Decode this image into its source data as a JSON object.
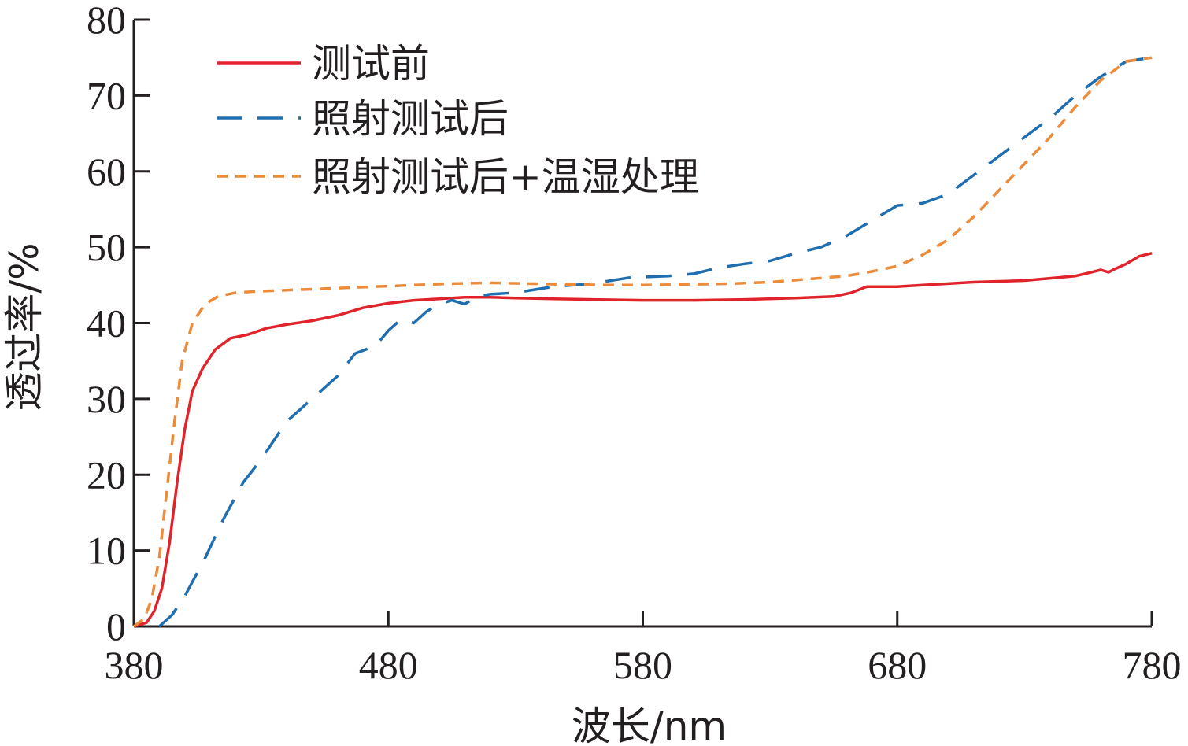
{
  "chart_data": {
    "type": "line",
    "title": "",
    "xlabel": "波长/nm",
    "ylabel": "透过率/%",
    "xlim": [
      380,
      780
    ],
    "ylim": [
      0,
      80
    ],
    "xticks": [
      "380",
      "480",
      "580",
      "680",
      "780"
    ],
    "yticks": [
      "0",
      "10",
      "20",
      "30",
      "40",
      "50",
      "60",
      "70",
      "80"
    ],
    "grid": false,
    "legend": "top-left",
    "series": [
      {
        "name": "测试前",
        "color": "#e0242b",
        "dash": "solid",
        "points": [
          [
            380,
            0
          ],
          [
            385,
            0.5
          ],
          [
            388,
            2
          ],
          [
            391,
            5
          ],
          [
            394,
            11
          ],
          [
            397,
            19
          ],
          [
            400,
            26
          ],
          [
            403,
            31
          ],
          [
            407,
            34
          ],
          [
            412,
            36.5
          ],
          [
            418,
            38
          ],
          [
            425,
            38.5
          ],
          [
            432,
            39.3
          ],
          [
            440,
            39.8
          ],
          [
            450,
            40.3
          ],
          [
            460,
            41
          ],
          [
            470,
            42
          ],
          [
            480,
            42.6
          ],
          [
            490,
            43
          ],
          [
            500,
            43.2
          ],
          [
            510,
            43.4
          ],
          [
            520,
            43.4
          ],
          [
            530,
            43.3
          ],
          [
            545,
            43.2
          ],
          [
            560,
            43.1
          ],
          [
            580,
            43
          ],
          [
            600,
            43
          ],
          [
            620,
            43.1
          ],
          [
            640,
            43.3
          ],
          [
            655,
            43.5
          ],
          [
            662,
            44
          ],
          [
            668,
            44.8
          ],
          [
            680,
            44.8
          ],
          [
            690,
            45
          ],
          [
            700,
            45.2
          ],
          [
            710,
            45.4
          ],
          [
            720,
            45.5
          ],
          [
            730,
            45.6
          ],
          [
            740,
            45.9
          ],
          [
            750,
            46.2
          ],
          [
            755,
            46.6
          ],
          [
            760,
            47
          ],
          [
            763,
            46.7
          ],
          [
            766,
            47.2
          ],
          [
            770,
            47.8
          ],
          [
            775,
            48.8
          ],
          [
            780,
            49.2
          ]
        ]
      },
      {
        "name": "照射测试后",
        "color": "#1f6eb0",
        "dash": "long",
        "points": [
          [
            390,
            0
          ],
          [
            395,
            1.5
          ],
          [
            400,
            4
          ],
          [
            408,
            9
          ],
          [
            415,
            14
          ],
          [
            423,
            19
          ],
          [
            430,
            22
          ],
          [
            440,
            27
          ],
          [
            450,
            30
          ],
          [
            460,
            33
          ],
          [
            467,
            36
          ],
          [
            475,
            37
          ],
          [
            480,
            39
          ],
          [
            485,
            40.5
          ],
          [
            490,
            40
          ],
          [
            495,
            41.5
          ],
          [
            500,
            42.5
          ],
          [
            505,
            43
          ],
          [
            510,
            42.5
          ],
          [
            515,
            43.5
          ],
          [
            520,
            43.8
          ],
          [
            530,
            44
          ],
          [
            545,
            44.8
          ],
          [
            560,
            45.2
          ],
          [
            575,
            46
          ],
          [
            590,
            46.2
          ],
          [
            600,
            46.5
          ],
          [
            610,
            47.3
          ],
          [
            620,
            47.8
          ],
          [
            630,
            48.2
          ],
          [
            640,
            49.2
          ],
          [
            650,
            50
          ],
          [
            660,
            51.5
          ],
          [
            670,
            53.5
          ],
          [
            680,
            55.5
          ],
          [
            690,
            55.8
          ],
          [
            700,
            57
          ],
          [
            710,
            59.5
          ],
          [
            720,
            62
          ],
          [
            730,
            64.5
          ],
          [
            740,
            67
          ],
          [
            750,
            70
          ],
          [
            760,
            72.5
          ],
          [
            770,
            74.5
          ],
          [
            780,
            75
          ]
        ]
      },
      {
        "name": "照射测试后+温湿处理",
        "color": "#ec8b3a",
        "dash": "short",
        "points": [
          [
            380,
            0
          ],
          [
            384,
            1
          ],
          [
            387,
            3.5
          ],
          [
            390,
            9
          ],
          [
            393,
            18
          ],
          [
            396,
            27
          ],
          [
            399,
            35
          ],
          [
            403,
            40
          ],
          [
            408,
            42.5
          ],
          [
            413,
            43.5
          ],
          [
            420,
            44
          ],
          [
            430,
            44.2
          ],
          [
            445,
            44.4
          ],
          [
            460,
            44.6
          ],
          [
            475,
            44.8
          ],
          [
            490,
            45
          ],
          [
            505,
            45.2
          ],
          [
            520,
            45.3
          ],
          [
            535,
            45.2
          ],
          [
            550,
            45.1
          ],
          [
            565,
            45
          ],
          [
            580,
            45
          ],
          [
            600,
            45.1
          ],
          [
            615,
            45.2
          ],
          [
            630,
            45.4
          ],
          [
            645,
            45.8
          ],
          [
            660,
            46.2
          ],
          [
            670,
            46.8
          ],
          [
            680,
            47.5
          ],
          [
            690,
            49
          ],
          [
            700,
            51
          ],
          [
            710,
            54
          ],
          [
            720,
            57.5
          ],
          [
            730,
            61
          ],
          [
            740,
            64.5
          ],
          [
            750,
            68.5
          ],
          [
            760,
            72
          ],
          [
            770,
            74.5
          ],
          [
            780,
            75
          ]
        ]
      }
    ]
  }
}
